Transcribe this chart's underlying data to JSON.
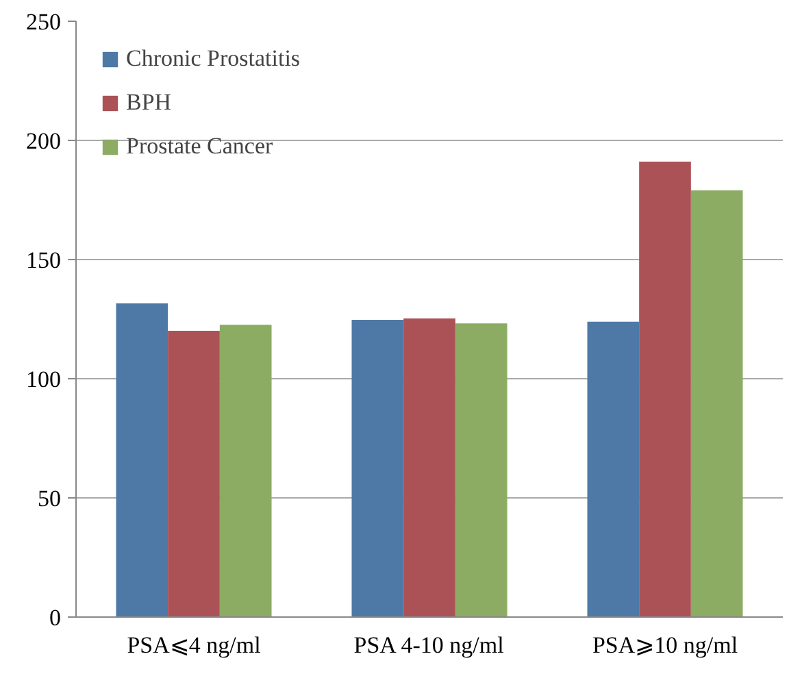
{
  "chart_data": {
    "type": "bar",
    "categories": [
      "PSA⩽4 ng/ml",
      "PSA 4-10 ng/ml",
      "PSA⩾10 ng/ml"
    ],
    "series": [
      {
        "name": "Chronic Prostatitis",
        "color": "#4e79a7",
        "values": [
          131.6,
          124.7,
          123.9
        ]
      },
      {
        "name": "BPH",
        "color": "#ab5256",
        "values": [
          120.1,
          125.3,
          191.1
        ]
      },
      {
        "name": "Prostate Cancer",
        "color": "#8cab63",
        "values": [
          122.6,
          123.2,
          179.0
        ]
      }
    ],
    "ylim": [
      0,
      250
    ],
    "yticks": [
      0,
      50,
      100,
      150,
      200,
      250
    ],
    "grid": "y",
    "legend": "top left"
  }
}
